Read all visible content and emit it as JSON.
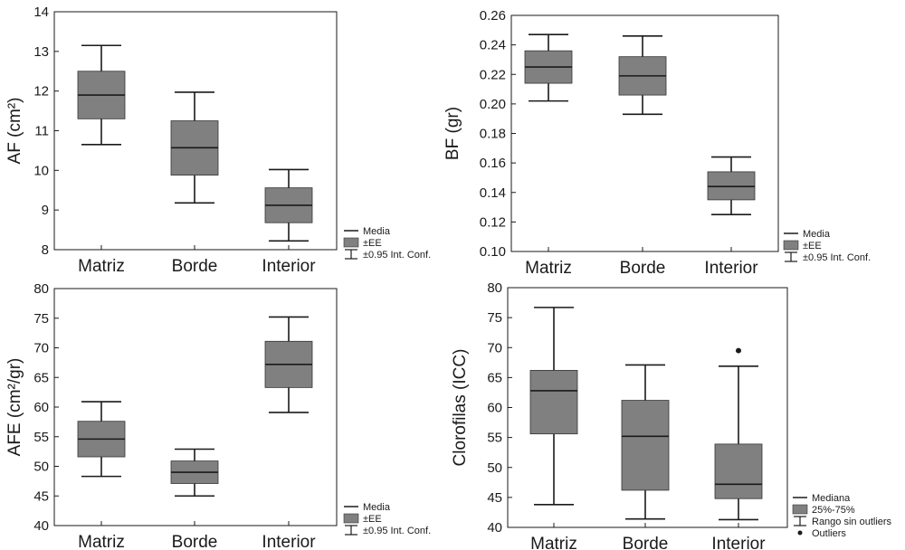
{
  "chart_data": [
    {
      "type": "box",
      "ylabel": "AF (cm²)",
      "ylim": [
        8,
        14
      ],
      "yticks": [
        "8",
        "9",
        "10",
        "11",
        "12",
        "13",
        "14"
      ],
      "categories": [
        "Matriz",
        "Borde",
        "Interior"
      ],
      "series": [
        {
          "center": 11.9,
          "box": [
            11.3,
            12.5
          ],
          "whisker": [
            10.65,
            13.15
          ]
        },
        {
          "center": 10.57,
          "box": [
            9.88,
            11.25
          ],
          "whisker": [
            9.18,
            11.97
          ]
        },
        {
          "center": 9.12,
          "box": [
            8.68,
            9.56
          ],
          "whisker": [
            8.22,
            10.02
          ]
        }
      ],
      "legend": [
        "Media",
        "±EE",
        "±0.95 Int. Conf."
      ],
      "color": "#808080"
    },
    {
      "type": "box",
      "ylabel": "BF (gr)",
      "ylim": [
        0.1,
        0.26
      ],
      "yticks": [
        "0.10",
        "0.12",
        "0.14",
        "0.16",
        "0.18",
        "0.20",
        "0.22",
        "0.24",
        "0.26"
      ],
      "categories": [
        "Matriz",
        "Borde",
        "Interior"
      ],
      "series": [
        {
          "center": 0.225,
          "box": [
            0.214,
            0.236
          ],
          "whisker": [
            0.202,
            0.247
          ]
        },
        {
          "center": 0.219,
          "box": [
            0.206,
            0.232
          ],
          "whisker": [
            0.193,
            0.246
          ]
        },
        {
          "center": 0.144,
          "box": [
            0.135,
            0.154
          ],
          "whisker": [
            0.125,
            0.164
          ]
        }
      ],
      "legend": [
        "Media",
        "±EE",
        "±0.95 Int. Conf."
      ],
      "color": "#808080"
    },
    {
      "type": "box",
      "ylabel": "AFE (cm²/gr)",
      "ylim": [
        40,
        80
      ],
      "yticks": [
        "40",
        "45",
        "50",
        "55",
        "60",
        "65",
        "70",
        "75",
        "80"
      ],
      "categories": [
        "Matriz",
        "Borde",
        "Interior"
      ],
      "series": [
        {
          "center": 54.6,
          "box": [
            51.6,
            57.6
          ],
          "whisker": [
            48.3,
            60.9
          ]
        },
        {
          "center": 49.0,
          "box": [
            47.1,
            50.9
          ],
          "whisker": [
            45.0,
            52.9
          ]
        },
        {
          "center": 67.2,
          "box": [
            63.3,
            71.1
          ],
          "whisker": [
            59.1,
            75.2
          ]
        }
      ],
      "legend": [
        "Media",
        "±EE",
        "±0.95 Int. Conf."
      ],
      "color": "#808080"
    },
    {
      "type": "box",
      "ylabel": "Clorofilas (ICC)",
      "ylim": [
        40,
        80
      ],
      "yticks": [
        "40",
        "45",
        "50",
        "55",
        "60",
        "65",
        "70",
        "75",
        "80"
      ],
      "categories": [
        "Matriz",
        "Borde",
        "Interior"
      ],
      "series": [
        {
          "center": 62.8,
          "box": [
            55.6,
            66.2
          ],
          "whisker": [
            43.8,
            76.7
          ]
        },
        {
          "center": 55.2,
          "box": [
            46.2,
            61.2
          ],
          "whisker": [
            41.4,
            67.1
          ]
        },
        {
          "center": 47.2,
          "box": [
            44.8,
            53.9
          ],
          "whisker": [
            41.3,
            66.9
          ],
          "outliers": [
            69.5
          ]
        }
      ],
      "legend": [
        "Mediana",
        "25%-75%",
        "Rango sin outliers",
        "Outliers"
      ],
      "color": "#808080"
    }
  ]
}
